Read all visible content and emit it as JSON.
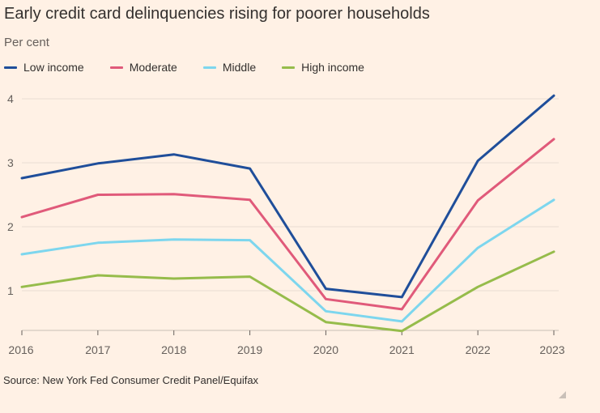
{
  "title": "Early credit card delinquencies rising for poorer households",
  "subtitle": "Per cent",
  "source": "Source: New York Fed Consumer Credit Panel/Equifax",
  "chart_data": {
    "type": "line",
    "title": "Early credit card delinquencies rising for poorer households",
    "subtitle": "Per cent",
    "xlabel": "",
    "ylabel": "",
    "x": [
      "2016",
      "2017",
      "2018",
      "2019",
      "2020",
      "2021",
      "2022",
      "2023"
    ],
    "yticks": [
      1,
      2,
      3,
      4
    ],
    "ylim": [
      0.37,
      4.2
    ],
    "grid": true,
    "legend_position": "top-left",
    "series": [
      {
        "name": "Low income",
        "color": "#1F4E9A",
        "values": [
          2.76,
          2.99,
          3.13,
          2.91,
          1.03,
          0.9,
          3.03,
          4.05
        ]
      },
      {
        "name": "Moderate",
        "color": "#E05A7A",
        "values": [
          2.15,
          2.5,
          2.51,
          2.42,
          0.87,
          0.71,
          2.41,
          3.37
        ]
      },
      {
        "name": "Middle",
        "color": "#7DD6EE",
        "values": [
          1.57,
          1.75,
          1.8,
          1.79,
          0.68,
          0.52,
          1.67,
          2.42
        ]
      },
      {
        "name": "High income",
        "color": "#96BC4B",
        "values": [
          1.06,
          1.24,
          1.19,
          1.22,
          0.51,
          0.37,
          1.06,
          1.61
        ]
      }
    ]
  }
}
